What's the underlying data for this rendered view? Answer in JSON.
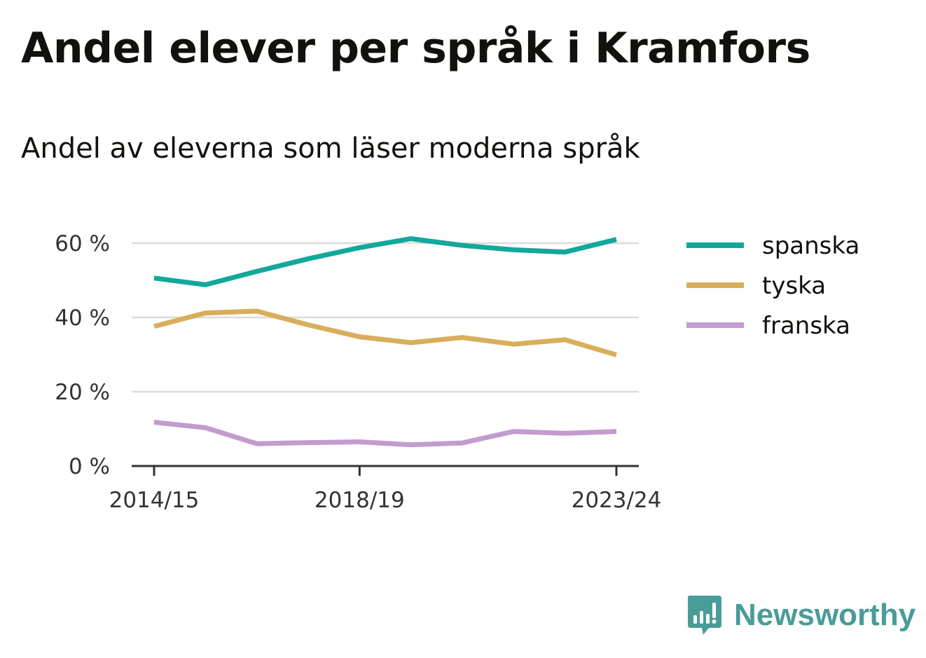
{
  "header": {
    "title": "Andel elever per språk i Kramfors",
    "subtitle": "Andel av eleverna som läser moderna språk"
  },
  "brand": {
    "name": "Newsworthy",
    "color": "#4a9c98",
    "icon": "bar-chart-speech-bubble-icon"
  },
  "chart_data": {
    "type": "line",
    "title": "Andel elever per språk i Kramfors",
    "subtitle": "Andel av eleverna som läser moderna språk",
    "x": [
      "2014/15",
      "2015/16",
      "2016/17",
      "2017/18",
      "2018/19",
      "2019/20",
      "2020/21",
      "2021/22",
      "2022/23",
      "2023/24"
    ],
    "x_tick_labels": [
      "2014/15",
      "2018/19",
      "2023/24"
    ],
    "y_tick_labels": [
      "0 %",
      "20 %",
      "40 %",
      "60 %"
    ],
    "y_ticks": [
      0,
      20,
      40,
      60
    ],
    "ylim": [
      0,
      60
    ],
    "unit": "%",
    "grid": true,
    "legend_position": "right",
    "series": [
      {
        "name": "spanska",
        "color": "#12a89b",
        "values": [
          50.6,
          48.8,
          52.4,
          55.8,
          58.8,
          61.2,
          59.4,
          58.2,
          57.6,
          61.0
        ]
      },
      {
        "name": "tyska",
        "color": "#d9ae5b",
        "values": [
          37.6,
          41.2,
          41.7,
          38.0,
          34.8,
          33.2,
          34.6,
          32.8,
          34.0,
          29.9
        ]
      },
      {
        "name": "franska",
        "color": "#c39bcf",
        "values": [
          11.8,
          10.3,
          6.0,
          6.3,
          6.5,
          5.7,
          6.2,
          9.3,
          8.8,
          9.3
        ]
      }
    ]
  }
}
